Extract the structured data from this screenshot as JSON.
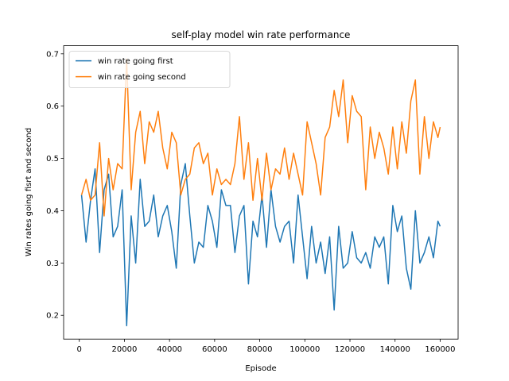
{
  "chart_data": {
    "type": "line",
    "title": "self-play model win rate performance",
    "x_label": "Episode",
    "y_label": "Win rates going fisrt and second",
    "x": [
      1000,
      3000,
      5000,
      7000,
      9000,
      11000,
      13000,
      15000,
      17000,
      19000,
      21000,
      23000,
      25000,
      27000,
      29000,
      31000,
      33000,
      35000,
      37000,
      39000,
      41000,
      43000,
      45000,
      47000,
      49000,
      51000,
      53000,
      55000,
      57000,
      59000,
      61000,
      63000,
      65000,
      67000,
      69000,
      71000,
      73000,
      75000,
      77000,
      79000,
      81000,
      83000,
      85000,
      87000,
      89000,
      91000,
      93000,
      95000,
      97000,
      99000,
      101000,
      103000,
      105000,
      107000,
      109000,
      111000,
      113000,
      115000,
      117000,
      119000,
      121000,
      123000,
      125000,
      127000,
      129000,
      131000,
      133000,
      135000,
      137000,
      139000,
      141000,
      143000,
      145000,
      147000,
      149000,
      151000,
      153000,
      155000,
      157000,
      159000,
      160000
    ],
    "series": [
      {
        "name": "win rate going first",
        "color": "#1f77b4",
        "values": [
          0.43,
          0.34,
          0.42,
          0.48,
          0.32,
          0.44,
          0.47,
          0.35,
          0.37,
          0.44,
          0.18,
          0.39,
          0.3,
          0.46,
          0.37,
          0.38,
          0.43,
          0.35,
          0.39,
          0.41,
          0.36,
          0.29,
          0.45,
          0.49,
          0.39,
          0.3,
          0.34,
          0.33,
          0.41,
          0.38,
          0.33,
          0.44,
          0.41,
          0.41,
          0.32,
          0.39,
          0.41,
          0.26,
          0.38,
          0.35,
          0.43,
          0.33,
          0.44,
          0.37,
          0.34,
          0.37,
          0.38,
          0.3,
          0.43,
          0.35,
          0.27,
          0.37,
          0.3,
          0.34,
          0.28,
          0.35,
          0.21,
          0.37,
          0.29,
          0.3,
          0.36,
          0.31,
          0.3,
          0.32,
          0.29,
          0.35,
          0.33,
          0.35,
          0.26,
          0.41,
          0.36,
          0.39,
          0.29,
          0.25,
          0.4,
          0.3,
          0.32,
          0.35,
          0.31,
          0.38,
          0.37
        ]
      },
      {
        "name": "win rate going second",
        "color": "#ff7f0e",
        "values": [
          0.43,
          0.46,
          0.42,
          0.43,
          0.53,
          0.39,
          0.5,
          0.44,
          0.49,
          0.48,
          0.69,
          0.44,
          0.55,
          0.59,
          0.49,
          0.57,
          0.55,
          0.59,
          0.52,
          0.48,
          0.55,
          0.53,
          0.43,
          0.46,
          0.47,
          0.52,
          0.53,
          0.49,
          0.51,
          0.43,
          0.48,
          0.45,
          0.46,
          0.45,
          0.49,
          0.58,
          0.46,
          0.53,
          0.42,
          0.5,
          0.42,
          0.51,
          0.44,
          0.48,
          0.47,
          0.52,
          0.46,
          0.51,
          0.47,
          0.43,
          0.57,
          0.53,
          0.49,
          0.43,
          0.54,
          0.56,
          0.63,
          0.58,
          0.65,
          0.53,
          0.62,
          0.59,
          0.58,
          0.44,
          0.56,
          0.5,
          0.55,
          0.52,
          0.47,
          0.56,
          0.48,
          0.57,
          0.51,
          0.61,
          0.65,
          0.47,
          0.58,
          0.5,
          0.57,
          0.54,
          0.56
        ]
      }
    ],
    "xlim": [
      -6950,
      167950
    ],
    "ylim": [
      0.1545,
      0.7155
    ],
    "xticks": [
      0,
      20000,
      40000,
      60000,
      80000,
      100000,
      120000,
      140000,
      160000
    ],
    "yticks": [
      0.2,
      0.3,
      0.4,
      0.5,
      0.6,
      0.7
    ],
    "legend": "upper left"
  }
}
